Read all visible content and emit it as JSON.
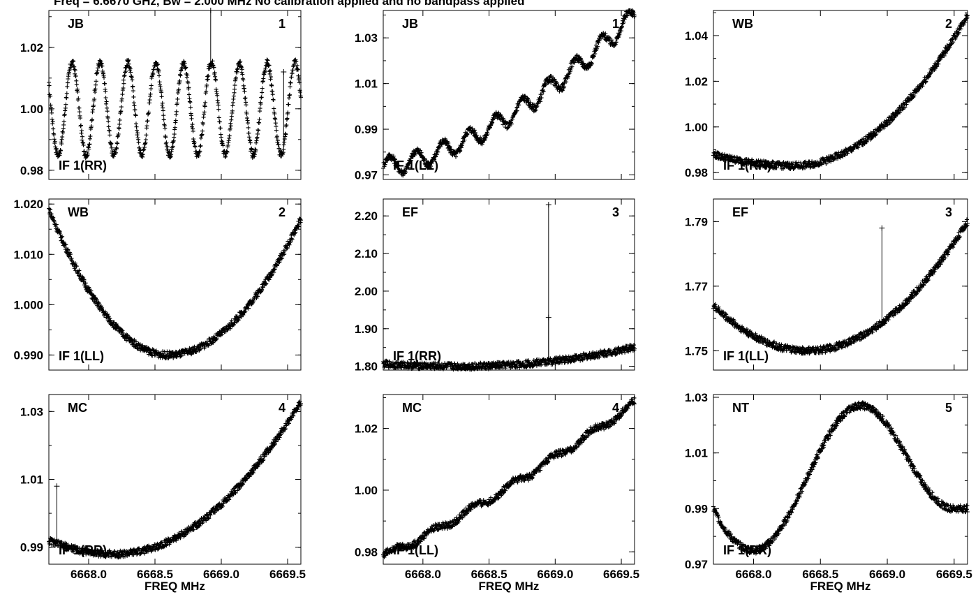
{
  "header": "Freq = 6.6670 GHz, Bw = 2.000 MHz No calibration applied and no bandpass applied",
  "chart_data": [
    {
      "type": "scatter",
      "station": "JB",
      "antenna_number": "1",
      "polarization": "IF 1(RR)",
      "xlabel": "",
      "xlim": [
        6667.7,
        6669.6
      ],
      "xticks": [
        6668.0,
        6668.5,
        6669.0,
        6669.5
      ],
      "ylim": [
        0.977,
        1.032
      ],
      "yticks": [
        0.98,
        1.0,
        1.02
      ],
      "ytick_labels": [
        "0.98",
        "1.00",
        "1.02"
      ],
      "shape": "osc",
      "params": {
        "mean": 1.0,
        "amp": 0.015,
        "period": 0.21,
        "phase": 2.6
      },
      "spikes": [
        [
          6668.92,
          1.032
        ],
        [
          6669.47,
          1.012
        ]
      ]
    },
    {
      "type": "scatter",
      "station": "JB",
      "antenna_number": "1",
      "polarization": "IF 1(LL)",
      "xlabel": "",
      "xlim": [
        6667.7,
        6669.6
      ],
      "xticks": [
        6668.0,
        6668.5,
        6669.0,
        6669.5
      ],
      "ylim": [
        0.968,
        1.042
      ],
      "yticks": [
        0.97,
        0.99,
        1.01,
        1.03
      ],
      "ytick_labels": [
        "0.97",
        "0.99",
        "1.01",
        "1.03"
      ],
      "shape": "wavy_rise",
      "params": {
        "start": 0.974,
        "end": 1.04,
        "curve": 1.6,
        "amp": 0.004,
        "period": 0.2
      },
      "spikes": []
    },
    {
      "type": "scatter",
      "station": "WB",
      "antenna_number": "2",
      "polarization": "IF 1(RR)",
      "xlabel": "",
      "xlim": [
        6667.7,
        6669.6
      ],
      "xticks": [
        6668.0,
        6668.5,
        6669.0,
        6669.5
      ],
      "ylim": [
        0.977,
        1.051
      ],
      "yticks": [
        0.98,
        1.0,
        1.02,
        1.04
      ],
      "ytick_labels": [
        "0.98",
        "1.00",
        "1.02",
        "1.04"
      ],
      "shape": "min_curve",
      "params": {
        "left": 0.988,
        "min": 0.983,
        "xmin": 6668.3,
        "right": 1.049
      },
      "spikes": []
    },
    {
      "type": "scatter",
      "station": "WB",
      "antenna_number": "2",
      "polarization": "IF 1(LL)",
      "xlabel": "",
      "xlim": [
        6667.7,
        6669.6
      ],
      "xticks": [
        6668.0,
        6668.5,
        6669.0,
        6669.5
      ],
      "ylim": [
        0.987,
        1.021
      ],
      "yticks": [
        0.99,
        1.0,
        1.01,
        1.02
      ],
      "ytick_labels": [
        "0.990",
        "1.000",
        "1.010",
        "1.020"
      ],
      "shape": "min_curve",
      "params": {
        "left": 1.019,
        "min": 0.99,
        "xmin": 6668.6,
        "right": 1.017
      },
      "spikes": []
    },
    {
      "type": "scatter",
      "station": "EF",
      "antenna_number": "3",
      "polarization": "IF 1(RR)",
      "xlabel": "",
      "xlim": [
        6667.7,
        6669.6
      ],
      "xticks": [
        6668.0,
        6668.5,
        6669.0,
        6669.5
      ],
      "ylim": [
        1.79,
        2.245
      ],
      "yticks": [
        1.8,
        1.9,
        2.0,
        2.1,
        2.2
      ],
      "ytick_labels": [
        "1.80",
        "1.90",
        "2.00",
        "2.10",
        "2.20"
      ],
      "shape": "min_curve",
      "params": {
        "left": 1.806,
        "min": 1.8,
        "xmin": 6668.3,
        "right": 1.851
      },
      "spikes": [
        [
          6668.95,
          2.23
        ],
        [
          6668.95,
          1.93
        ]
      ]
    },
    {
      "type": "scatter",
      "station": "EF",
      "antenna_number": "3",
      "polarization": "IF 1(LL)",
      "xlabel": "",
      "xlim": [
        6667.7,
        6669.6
      ],
      "xticks": [
        6668.0,
        6668.5,
        6669.0,
        6669.5
      ],
      "ylim": [
        1.744,
        1.797
      ],
      "yticks": [
        1.75,
        1.77,
        1.79
      ],
      "ytick_labels": [
        "1.75",
        "1.77",
        "1.79"
      ],
      "shape": "min_curve",
      "params": {
        "left": 1.764,
        "min": 1.75,
        "xmin": 6668.4,
        "right": 1.79
      },
      "spikes": [
        [
          6668.96,
          1.788
        ]
      ]
    },
    {
      "type": "scatter",
      "station": "MC",
      "antenna_number": "4",
      "polarization": "IF 1(RR)",
      "xlabel": "FREQ MHz",
      "xlim": [
        6667.7,
        6669.6
      ],
      "xticks": [
        6668.0,
        6668.5,
        6669.0,
        6669.5
      ],
      "xtick_labels": [
        "6668.0",
        "6668.5",
        "6669.0",
        "6669.5"
      ],
      "ylim": [
        0.985,
        1.035
      ],
      "yticks": [
        0.99,
        1.01,
        1.03
      ],
      "ytick_labels": [
        "0.99",
        "1.01",
        "1.03"
      ],
      "shape": "min_curve",
      "params": {
        "left": 0.992,
        "min": 0.988,
        "xmin": 6668.2,
        "right": 1.033
      },
      "spikes": [
        [
          6667.76,
          1.008
        ]
      ]
    },
    {
      "type": "scatter",
      "station": "MC",
      "antenna_number": "4",
      "polarization": "IF 1(LL)",
      "xlabel": "FREQ MHz",
      "xlim": [
        6667.7,
        6669.6
      ],
      "xticks": [
        6668.0,
        6668.5,
        6669.0,
        6669.5
      ],
      "xtick_labels": [
        "6668.0",
        "6668.5",
        "6669.0",
        "6669.5"
      ],
      "ylim": [
        0.976,
        1.031
      ],
      "yticks": [
        0.98,
        1.0,
        1.02
      ],
      "ytick_labels": [
        "0.98",
        "1.00",
        "1.02"
      ],
      "shape": "wavy_rise",
      "params": {
        "start": 0.979,
        "end": 1.028,
        "curve": 1.15,
        "amp": 0.001,
        "period": 0.3
      },
      "spikes": []
    },
    {
      "type": "scatter",
      "station": "NT",
      "antenna_number": "5",
      "polarization": "IF 1(RR)",
      "xlabel": "FREQ MHz",
      "xlim": [
        6667.7,
        6669.6
      ],
      "xticks": [
        6668.0,
        6668.5,
        6669.0,
        6669.5
      ],
      "xtick_labels": [
        "6668.0",
        "6668.5",
        "6669.0",
        "6669.5"
      ],
      "ylim": [
        0.97,
        1.031
      ],
      "yticks": [
        0.97,
        0.99,
        1.01,
        1.03
      ],
      "ytick_labels": [
        "0.97",
        "0.99",
        "1.01",
        "1.03"
      ],
      "shape": "bell",
      "params": {
        "base": 0.99,
        "dip": 0.975,
        "xdip": 6668.0,
        "peak": 1.027,
        "xpeak": 6668.8,
        "right": 0.99
      },
      "spikes": []
    }
  ]
}
